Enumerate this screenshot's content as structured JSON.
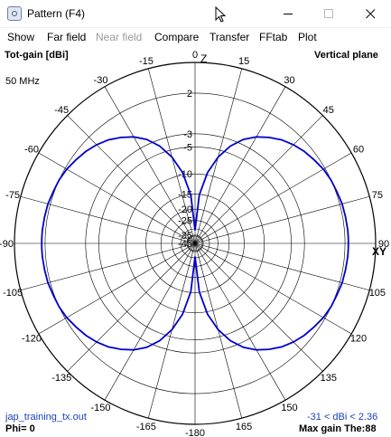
{
  "window": {
    "title": "Pattern   (F4)",
    "icon": "antenna-pattern-icon"
  },
  "menu": [
    {
      "label": "Show",
      "enabled": true
    },
    {
      "label": "Far field",
      "enabled": true
    },
    {
      "label": "Near field",
      "enabled": false
    },
    {
      "label": "Compare",
      "enabled": true
    },
    {
      "label": "Transfer",
      "enabled": true
    },
    {
      "label": "FFtab",
      "enabled": true
    },
    {
      "label": "Plot",
      "enabled": true
    }
  ],
  "plot": {
    "gain_label": "Tot-gain [dBi]",
    "plane": "Vertical plane",
    "frequency": "50 MHz",
    "axis_z": "Z",
    "axis_xy": "XY",
    "file": "jap_training_tx.out",
    "phi": "Phi= 0",
    "gain_range": "-31 < dBi < 2.36",
    "max_gain": "Max gain The:88",
    "accent_color": "#1a3fc0",
    "trace_color": "#0000cc"
  },
  "chart_data": {
    "type": "polar",
    "angle_ticks": [
      0,
      15,
      30,
      45,
      60,
      75,
      90,
      105,
      120,
      135,
      150,
      165,
      -180,
      -165,
      -150,
      -135,
      -120,
      -105,
      -90,
      -75,
      -60,
      -45,
      -30,
      -15
    ],
    "angle_tick_labels": [
      "0",
      "15",
      "30",
      "45",
      "60",
      "75",
      "90",
      "105",
      "120",
      "135",
      "150",
      "165",
      "-180",
      "-165",
      "-150",
      "-135",
      "-120",
      "-105",
      "-90",
      "-75",
      "-60",
      "-45",
      "-30",
      "-15"
    ],
    "radial_ticks_dbi": [
      2,
      -3,
      -5,
      -10,
      -15,
      -20,
      -25,
      -35,
      -45
    ],
    "radial_tick_labels": [
      "2",
      "-3",
      "-5",
      "-10",
      "-15",
      "-20",
      "-25",
      "-35",
      "-45"
    ],
    "r_range_dbi": [
      -45,
      5
    ],
    "max_gain_dbi": 2.36,
    "min_gain_dbi": -31,
    "max_gain_angle_deg": 88,
    "series": [
      {
        "values_theta_deg": [
          0,
          5,
          10,
          15,
          20,
          25,
          30,
          35,
          40,
          45,
          50,
          55,
          60,
          65,
          70,
          75,
          80,
          85,
          88,
          90
        ],
        "values_dbi": [
          -31,
          -15.2,
          -9.5,
          -6.2,
          -3.9,
          -2.3,
          -1.2,
          -0.4,
          0.3,
          0.8,
          1.2,
          1.5,
          1.8,
          2.0,
          2.1,
          2.25,
          2.3,
          2.35,
          2.36,
          2.36
        ]
      }
    ]
  }
}
